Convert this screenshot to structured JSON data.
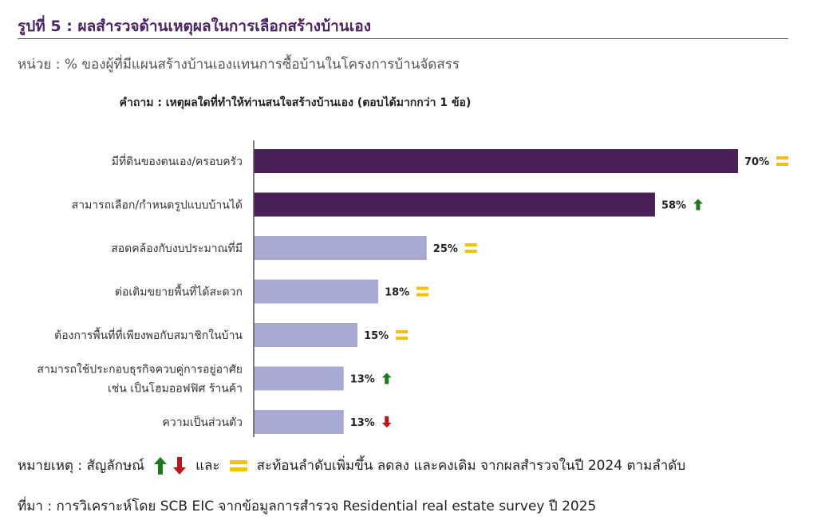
{
  "figure": {
    "title": "รูปที่ 5 : ผลสำรวจด้านเหตุผลในการเลือกสร้างบ้านเอง",
    "unit": "หน่วย : % ของผู้ที่มีแผนสร้างบ้านเองแทนการซื้อบ้านในโครงการบ้านจัดสรร",
    "question": "คำถาม : เหตุผลใดที่ทำให้ท่านสนใจสร้างบ้านเอง (ตอบได้มากกว่า 1 ข้อ)"
  },
  "legend": {
    "prefix": "หมายเหตุ : สัญลักษณ์",
    "and": "และ",
    "suffix": "สะท้อนลำดับเพิ่มขึ้น ลดลง และคงเดิม จากผลสำรวจในปี 2024 ตามลำดับ"
  },
  "source": "ที่มา : การวิเคราะห์โดย SCB EIC จากข้อมูลการสำรวจ Residential real estate survey ปี 2025",
  "colors": {
    "title": "#4b2463",
    "bar_dark": "#4a2059",
    "bar_light": "#a9aad4",
    "up": "#1f7a1f",
    "down": "#c0141c",
    "same": "#f2c200"
  },
  "chart_data": {
    "type": "bar",
    "orientation": "horizontal",
    "unit": "%",
    "xlim": [
      0,
      70
    ],
    "categories": [
      [
        "มีที่ดินของตนเอง/ครอบครัว"
      ],
      [
        "สามารถเลือก/กำหนดรูปแบบบ้านได้"
      ],
      [
        "สอดคล้องกับงบประมาณที่มี"
      ],
      [
        "ต่อเติมขยายพื้นที่ได้สะดวก"
      ],
      [
        "ต้องการพื้นที่ที่เพียงพอกับสมาชิกในบ้าน"
      ],
      [
        "สามารถใช้ประกอบธุรกิจควบคู่การอยู่อาศัย",
        "เช่น เป็นโฮมออฟฟิศ ร้านค้า"
      ],
      [
        "ความเป็นส่วนตัว"
      ]
    ],
    "values": [
      70,
      58,
      25,
      18,
      15,
      13,
      13
    ],
    "value_labels": [
      "70%",
      "58%",
      "25%",
      "18%",
      "15%",
      "13%",
      "13%"
    ],
    "rank_change": [
      "same",
      "up",
      "same",
      "same",
      "same",
      "up",
      "down"
    ],
    "highlight": [
      true,
      true,
      false,
      false,
      false,
      false,
      false
    ]
  }
}
